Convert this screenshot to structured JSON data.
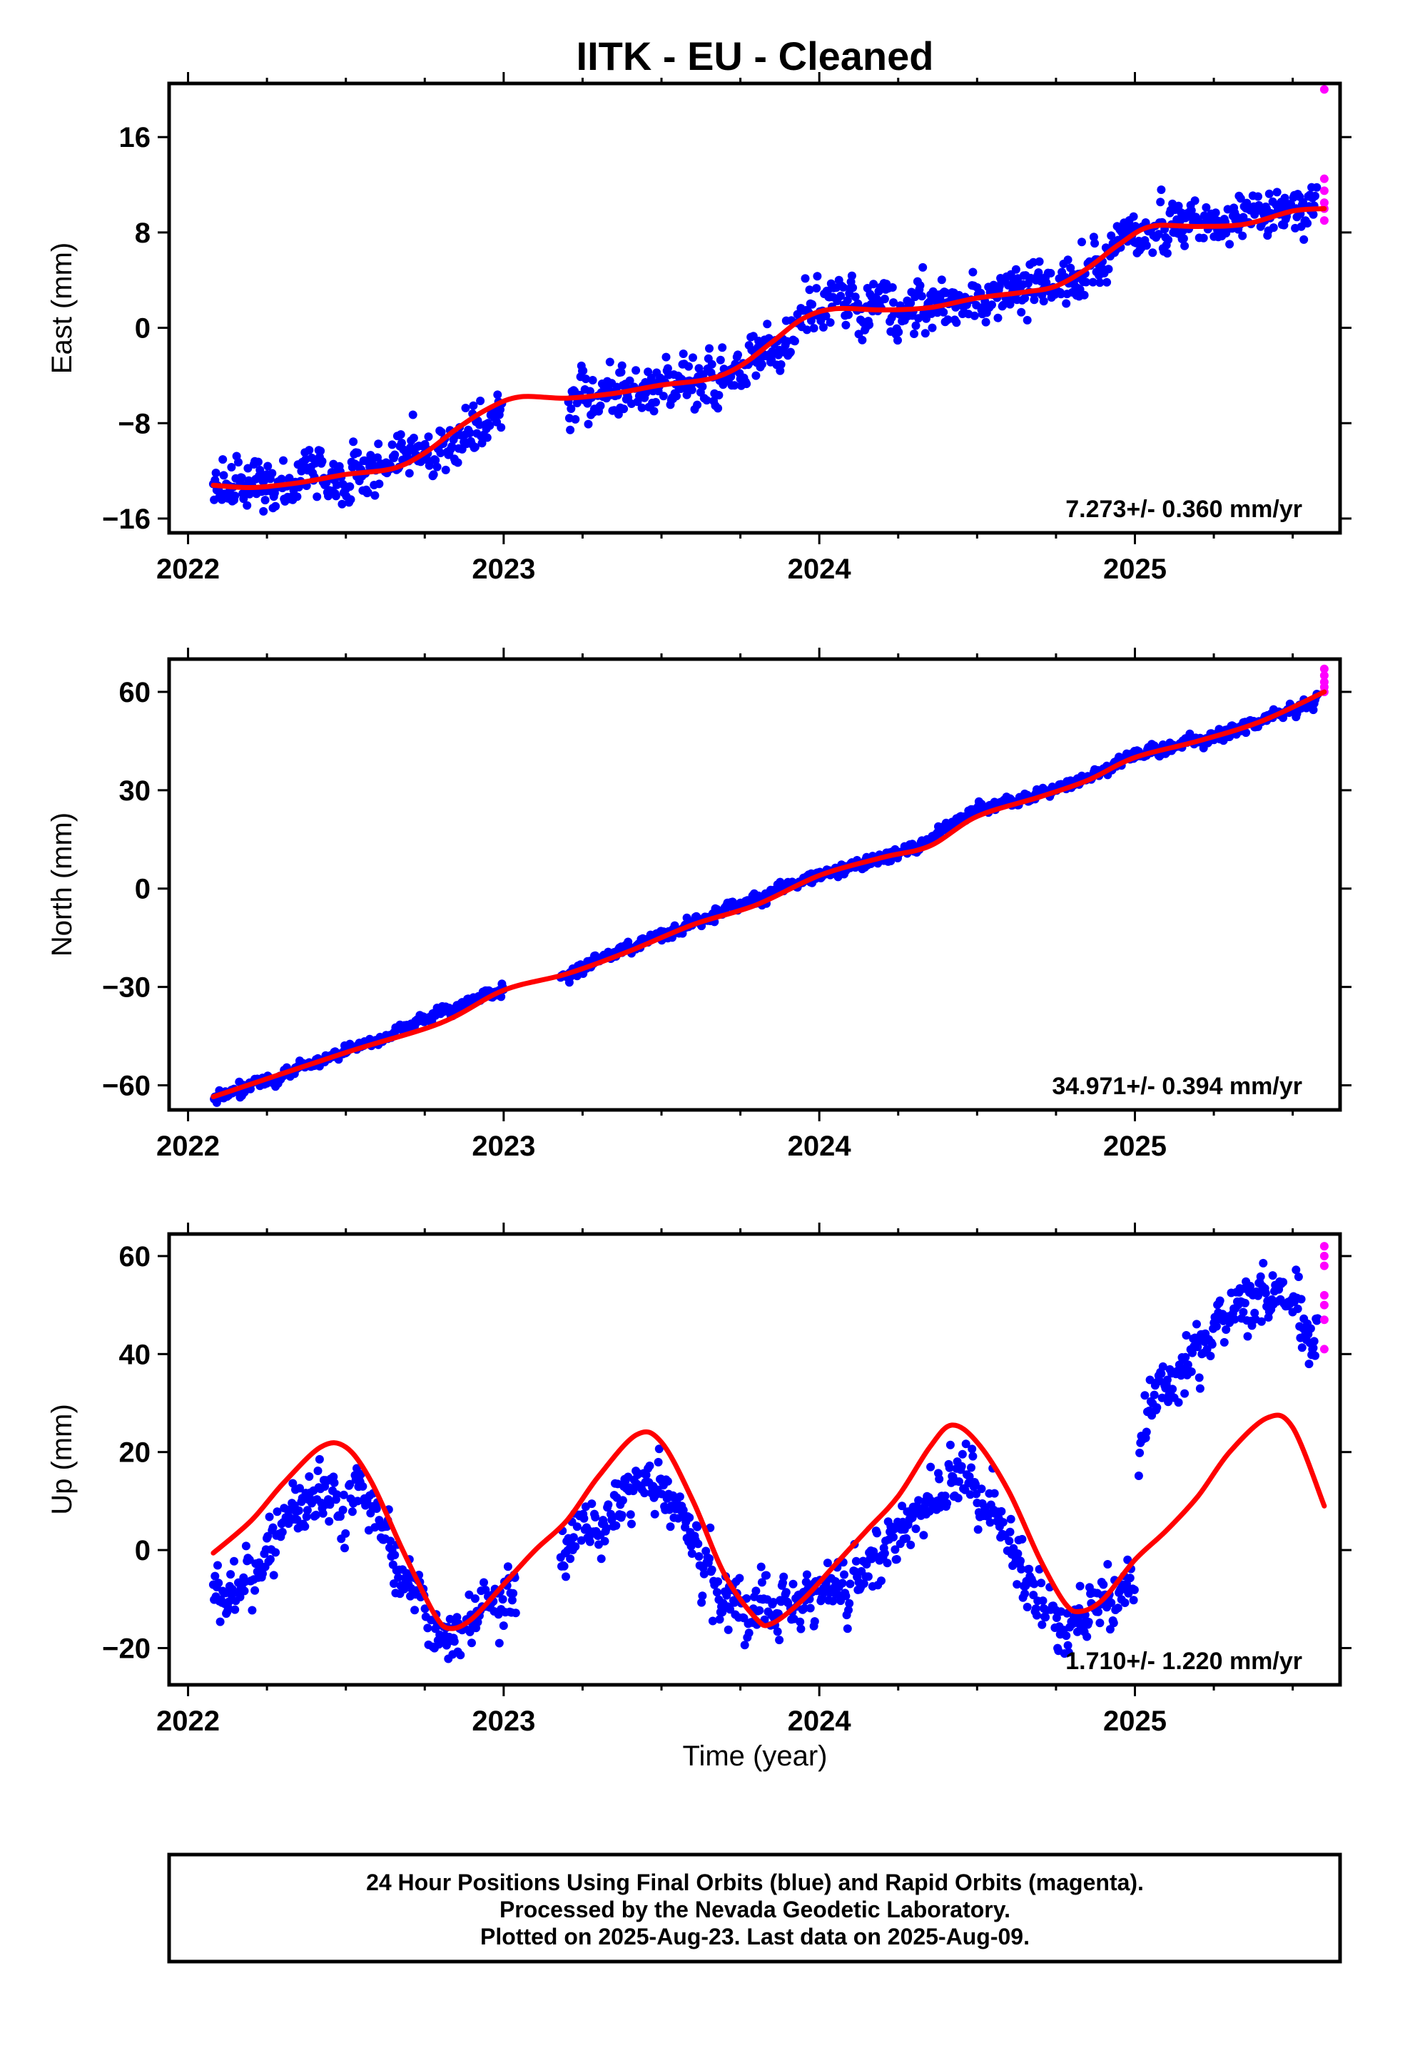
{
  "chart_data": {
    "type": "scatter",
    "title": "IITK  - EU - Cleaned",
    "xlabel": "Time (year)",
    "xlim": [
      2021.94,
      2025.65
    ],
    "xticks": [
      "2022",
      "2023",
      "2024",
      "2025"
    ],
    "colors": {
      "final": "#0000ff",
      "rapid": "#ff00ff",
      "model": "#ff0000"
    },
    "panels": [
      {
        "id": "east",
        "ylabel": "East (mm)",
        "ylim": [
          -17.2,
          20.5
        ],
        "yticks": [
          16,
          8,
          0,
          -8,
          -16
        ],
        "ytick_labels": [
          "16",
          "8",
          "0",
          "−8",
          "−16"
        ],
        "rate_label": "7.273+/- 0.360 mm/yr",
        "rate": 7.273,
        "noise": 1.2,
        "gaps": [
          [
            2023.0,
            2023.2
          ]
        ],
        "final_trend": [
          [
            2022.08,
            -13.5
          ],
          [
            2022.3,
            -13.2
          ],
          [
            2022.6,
            -12.0
          ],
          [
            2022.8,
            -10.0
          ],
          [
            2023.0,
            -7.0
          ],
          [
            2023.2,
            -6.0
          ],
          [
            2023.5,
            -5.0
          ],
          [
            2023.7,
            -4.0
          ],
          [
            2023.9,
            -1.0
          ],
          [
            2024.0,
            2.0
          ],
          [
            2024.2,
            2.0
          ],
          [
            2024.4,
            1.5
          ],
          [
            2024.6,
            2.5
          ],
          [
            2024.8,
            4.0
          ],
          [
            2024.95,
            7.5
          ],
          [
            2025.1,
            8.5
          ],
          [
            2025.3,
            8.5
          ],
          [
            2025.5,
            10.0
          ],
          [
            2025.58,
            10.0
          ]
        ],
        "rapid_points": [
          [
            2025.6,
            20.0
          ],
          [
            2025.6,
            12.5
          ],
          [
            2025.6,
            11.5
          ],
          [
            2025.6,
            10.5
          ],
          [
            2025.6,
            10.0
          ],
          [
            2025.6,
            9.0
          ]
        ],
        "model_line": [
          [
            2022.08,
            -13.2
          ],
          [
            2022.2,
            -13.4
          ],
          [
            2022.35,
            -13.0
          ],
          [
            2022.5,
            -12.3
          ],
          [
            2022.65,
            -11.8
          ],
          [
            2022.75,
            -10.5
          ],
          [
            2022.85,
            -8.5
          ],
          [
            2022.95,
            -6.8
          ],
          [
            2023.05,
            -5.8
          ],
          [
            2023.2,
            -5.9
          ],
          [
            2023.35,
            -5.5
          ],
          [
            2023.5,
            -4.8
          ],
          [
            2023.65,
            -4.3
          ],
          [
            2023.75,
            -3.2
          ],
          [
            2023.85,
            -1.2
          ],
          [
            2023.95,
            0.8
          ],
          [
            2024.05,
            1.6
          ],
          [
            2024.2,
            1.5
          ],
          [
            2024.35,
            1.7
          ],
          [
            2024.5,
            2.5
          ],
          [
            2024.65,
            3.0
          ],
          [
            2024.75,
            3.5
          ],
          [
            2024.85,
            5.0
          ],
          [
            2024.95,
            7.0
          ],
          [
            2025.05,
            8.5
          ],
          [
            2025.2,
            8.5
          ],
          [
            2025.35,
            8.7
          ],
          [
            2025.5,
            9.8
          ],
          [
            2025.6,
            10.0
          ]
        ]
      },
      {
        "id": "north",
        "ylabel": "North (mm)",
        "ylim": [
          -67.5,
          70
        ],
        "yticks": [
          60,
          30,
          0,
          -30,
          -60
        ],
        "ytick_labels": [
          "60",
          "30",
          "0",
          "−30",
          "−60"
        ],
        "rate_label": "34.971+/- 0.394 mm/yr",
        "rate": 34.971,
        "noise": 1.0,
        "gaps": [
          [
            2023.0,
            2023.18
          ]
        ],
        "final_trend": [
          [
            2022.08,
            -64.0
          ],
          [
            2022.5,
            -50.0
          ],
          [
            2023.0,
            -30.0
          ],
          [
            2023.2,
            -26.0
          ],
          [
            2023.5,
            -14.0
          ],
          [
            2024.0,
            4.0
          ],
          [
            2024.3,
            12.0
          ],
          [
            2024.5,
            24.0
          ],
          [
            2024.75,
            30.0
          ],
          [
            2025.0,
            41.0
          ],
          [
            2025.2,
            45.0
          ],
          [
            2025.4,
            51.0
          ],
          [
            2025.58,
            58.0
          ]
        ],
        "rapid_points": [
          [
            2025.6,
            67.0
          ],
          [
            2025.6,
            65.0
          ],
          [
            2025.6,
            63.0
          ],
          [
            2025.6,
            61.5
          ],
          [
            2025.6,
            60.0
          ]
        ],
        "model_line": [
          [
            2022.08,
            -63.5
          ],
          [
            2022.5,
            -50.0
          ],
          [
            2022.8,
            -41.0
          ],
          [
            2023.0,
            -31.0
          ],
          [
            2023.2,
            -26.0
          ],
          [
            2023.4,
            -19.0
          ],
          [
            2023.6,
            -11.0
          ],
          [
            2023.8,
            -5.0
          ],
          [
            2024.0,
            4.0
          ],
          [
            2024.2,
            9.5
          ],
          [
            2024.35,
            13.0
          ],
          [
            2024.5,
            22.0
          ],
          [
            2024.7,
            28.0
          ],
          [
            2024.85,
            33.0
          ],
          [
            2025.0,
            40.0
          ],
          [
            2025.2,
            45.0
          ],
          [
            2025.4,
            51.0
          ],
          [
            2025.6,
            60.0
          ]
        ]
      },
      {
        "id": "up",
        "ylabel": "Up (mm)",
        "ylim": [
          -27.5,
          64.5
        ],
        "yticks": [
          60,
          40,
          20,
          0,
          -20
        ],
        "ytick_labels": [
          "60",
          "40",
          "20",
          "0",
          "−20"
        ],
        "rate_label": "1.710+/- 1.220 mm/yr",
        "rate": 1.71,
        "noise": 3.5,
        "gaps": [
          [
            2023.04,
            2023.18
          ],
          [
            2025.0,
            2025.01
          ]
        ],
        "final_trend": [
          [
            2022.08,
            -8.0
          ],
          [
            2022.2,
            -5.0
          ],
          [
            2022.3,
            5.0
          ],
          [
            2022.45,
            13.0
          ],
          [
            2022.55,
            10.0
          ],
          [
            2022.65,
            0.0
          ],
          [
            2022.75,
            -12.0
          ],
          [
            2022.85,
            -17.0
          ],
          [
            2022.95,
            -12.0
          ],
          [
            2023.03,
            -8.0
          ],
          [
            2023.2,
            0.0
          ],
          [
            2023.3,
            5.0
          ],
          [
            2023.45,
            14.0
          ],
          [
            2023.55,
            8.0
          ],
          [
            2023.65,
            -5.0
          ],
          [
            2023.75,
            -12.0
          ],
          [
            2023.85,
            -13.0
          ],
          [
            2024.0,
            -8.0
          ],
          [
            2024.1,
            -5.0
          ],
          [
            2024.2,
            0.0
          ],
          [
            2024.3,
            8.0
          ],
          [
            2024.45,
            14.0
          ],
          [
            2024.55,
            8.0
          ],
          [
            2024.65,
            -5.0
          ],
          [
            2024.75,
            -14.0
          ],
          [
            2024.85,
            -14.0
          ],
          [
            2025.0,
            -6.0
          ],
          [
            2025.02,
            28.0
          ],
          [
            2025.1,
            34.0
          ],
          [
            2025.2,
            40.0
          ],
          [
            2025.3,
            48.0
          ],
          [
            2025.4,
            52.0
          ],
          [
            2025.5,
            52.0
          ],
          [
            2025.55,
            42.0
          ],
          [
            2025.58,
            42.0
          ]
        ],
        "rapid_points": [
          [
            2025.6,
            62.0
          ],
          [
            2025.6,
            60.0
          ],
          [
            2025.6,
            58.0
          ],
          [
            2025.6,
            52.0
          ],
          [
            2025.6,
            50.0
          ],
          [
            2025.6,
            47.0
          ],
          [
            2025.6,
            41.0
          ]
        ],
        "model_line": [
          [
            2022.08,
            -0.6
          ],
          [
            2022.2,
            6.0
          ],
          [
            2022.3,
            13.5
          ],
          [
            2022.42,
            21.0
          ],
          [
            2022.5,
            21.0
          ],
          [
            2022.58,
            14.0
          ],
          [
            2022.68,
            0.0
          ],
          [
            2022.78,
            -13.0
          ],
          [
            2022.83,
            -16.0
          ],
          [
            2022.9,
            -14.0
          ],
          [
            2023.0,
            -7.0
          ],
          [
            2023.1,
            0.0
          ],
          [
            2023.2,
            6.0
          ],
          [
            2023.3,
            15.0
          ],
          [
            2023.42,
            23.5
          ],
          [
            2023.5,
            22.0
          ],
          [
            2023.6,
            10.0
          ],
          [
            2023.7,
            -5.0
          ],
          [
            2023.8,
            -14.0
          ],
          [
            2023.85,
            -15.0
          ],
          [
            2023.95,
            -10.0
          ],
          [
            2024.05,
            -3.0
          ],
          [
            2024.15,
            4.0
          ],
          [
            2024.25,
            11.0
          ],
          [
            2024.35,
            21.0
          ],
          [
            2024.42,
            25.5
          ],
          [
            2024.5,
            22.0
          ],
          [
            2024.6,
            12.0
          ],
          [
            2024.7,
            -2.0
          ],
          [
            2024.78,
            -11.0
          ],
          [
            2024.83,
            -12.5
          ],
          [
            2024.9,
            -10.0
          ],
          [
            2025.0,
            -2.0
          ],
          [
            2025.1,
            4.0
          ],
          [
            2025.2,
            11.0
          ],
          [
            2025.3,
            20.0
          ],
          [
            2025.42,
            27.0
          ],
          [
            2025.5,
            25.0
          ],
          [
            2025.6,
            9.0
          ]
        ]
      }
    ]
  },
  "footer": {
    "lines": [
      "24 Hour Positions Using Final Orbits (blue) and Rapid Orbits (magenta).",
      "Processed by the Nevada Geodetic Laboratory.",
      "Plotted on 2025-Aug-23. Last data on 2025-Aug-09."
    ]
  }
}
